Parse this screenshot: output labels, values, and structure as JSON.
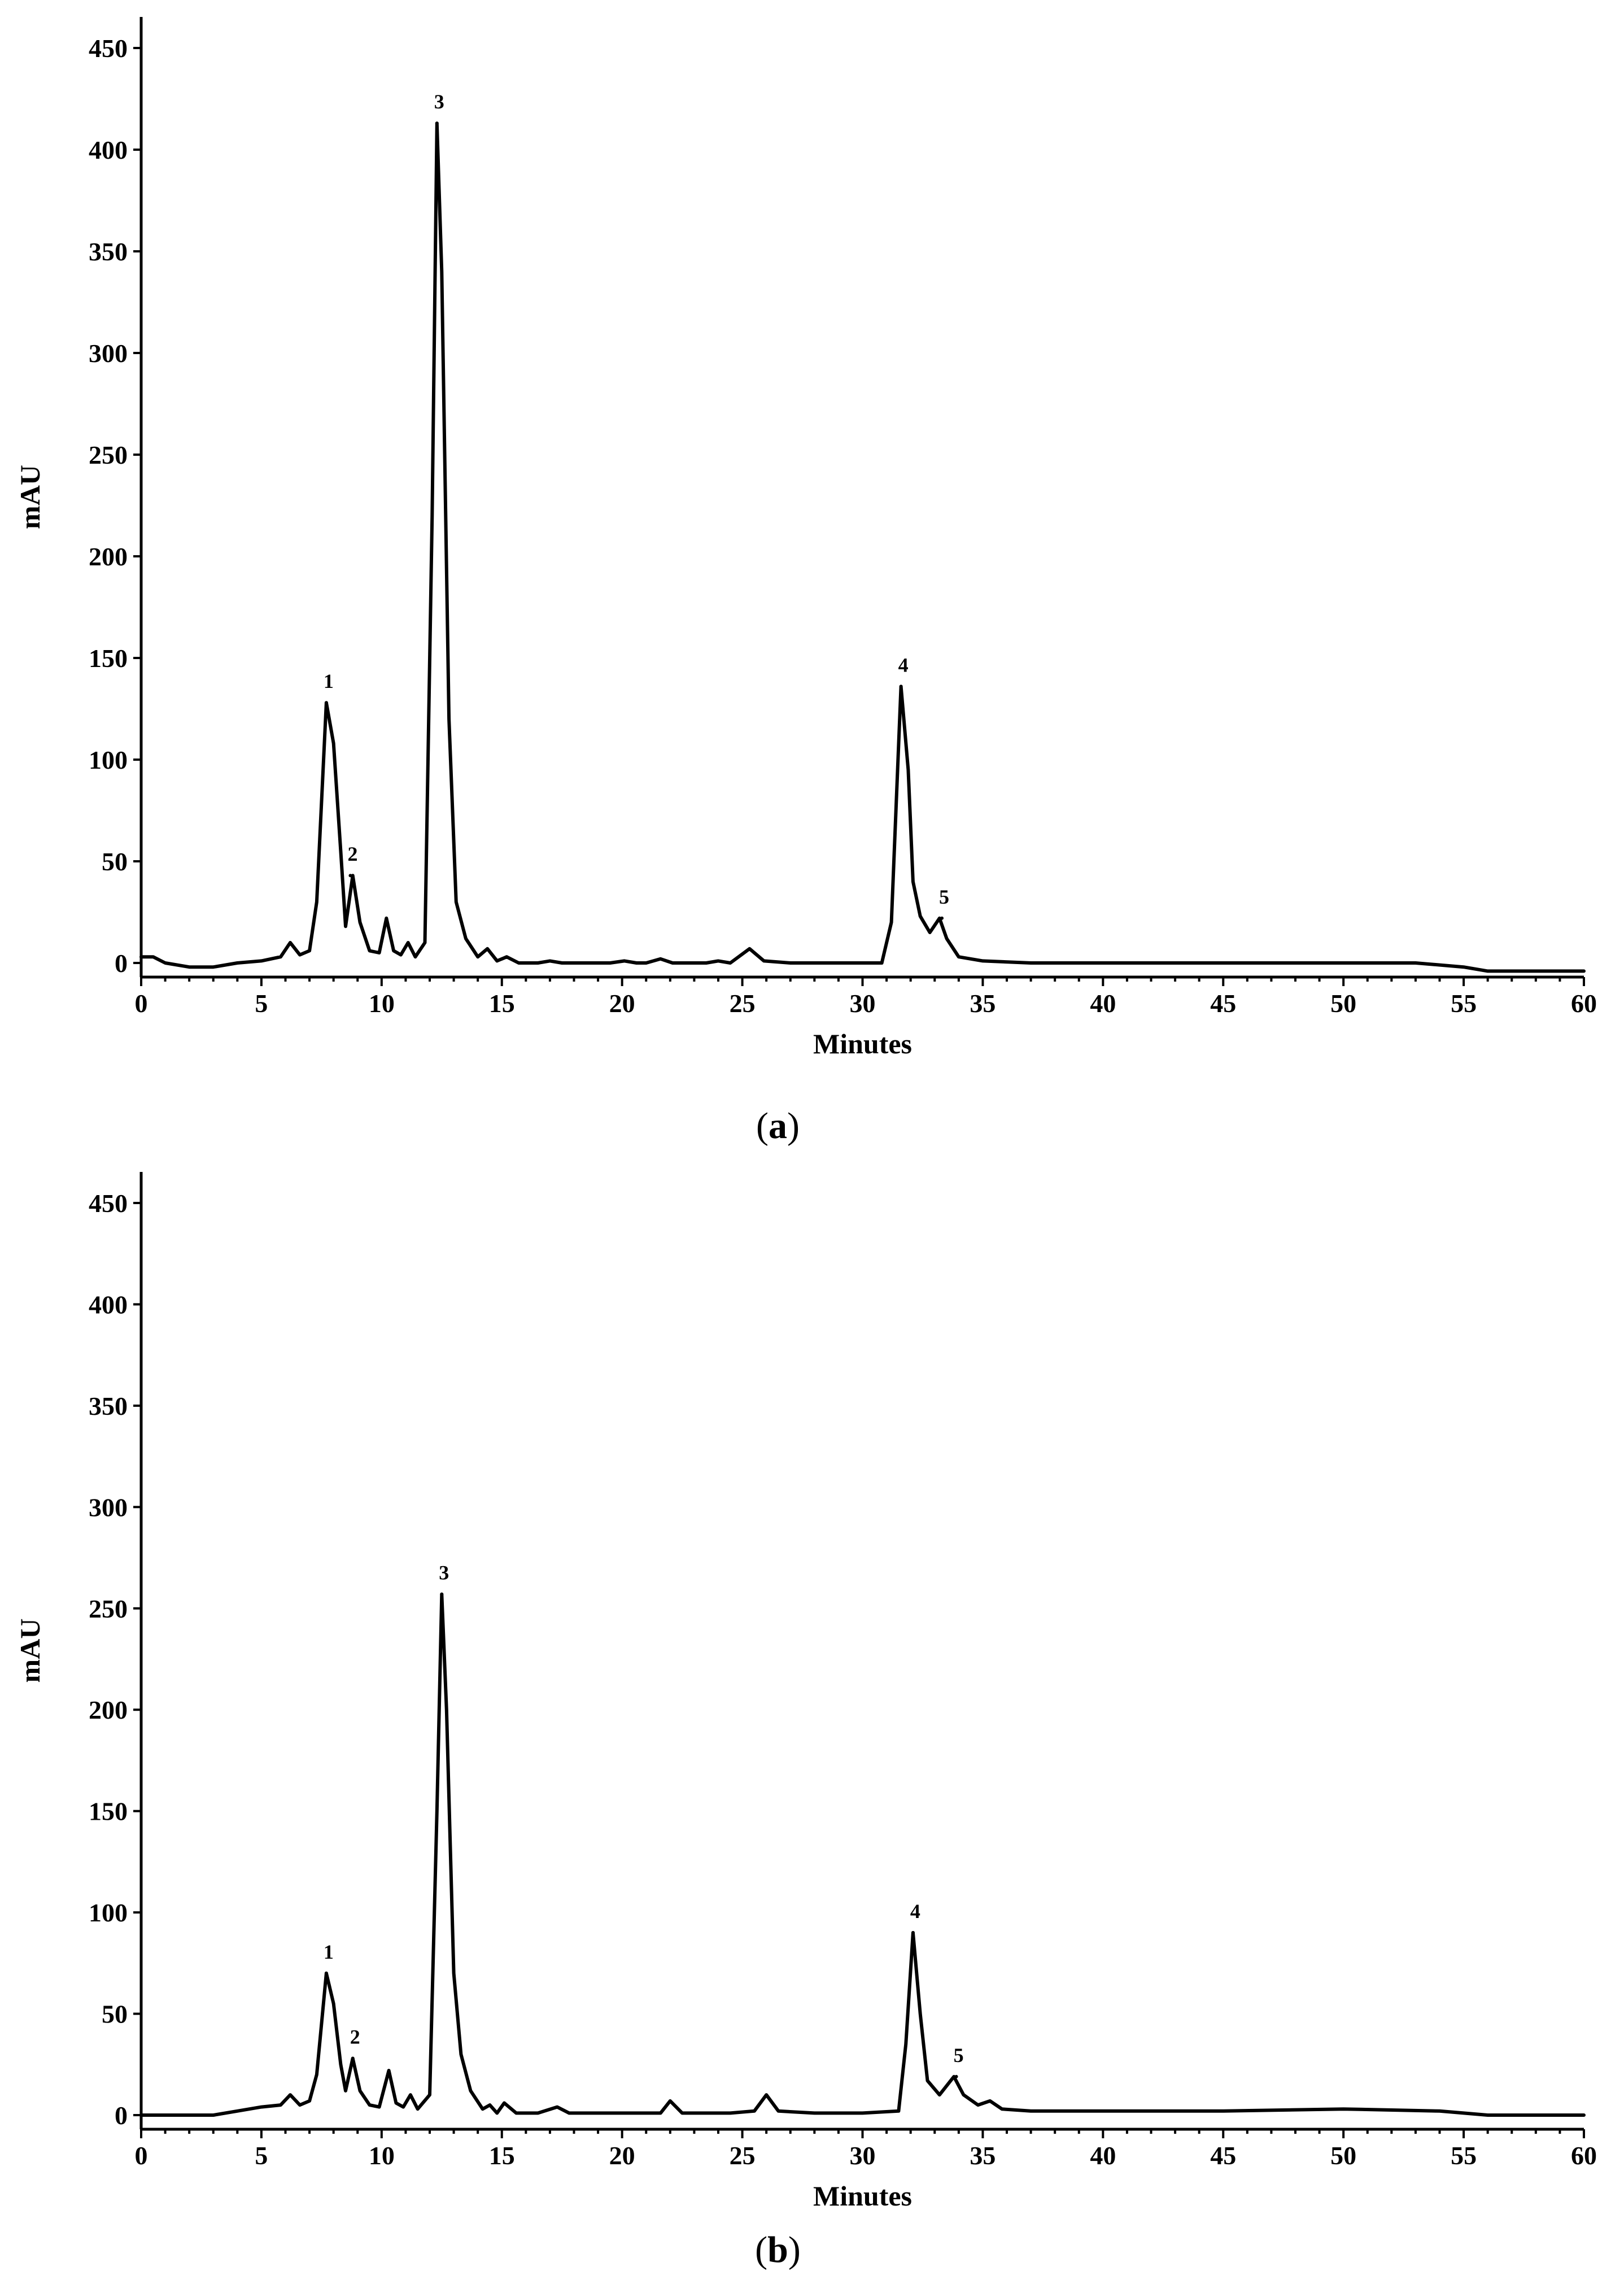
{
  "chart_data": [
    {
      "panel": "a",
      "type": "line",
      "title": "",
      "xlabel": "Minutes",
      "ylabel": "mAU",
      "xlim": [
        0,
        60
      ],
      "ylim": [
        0,
        450
      ],
      "xticks": [
        0,
        5,
        10,
        15,
        20,
        25,
        30,
        35,
        40,
        45,
        50,
        55,
        60
      ],
      "yticks": [
        0,
        50,
        100,
        150,
        200,
        250,
        300,
        350,
        400,
        450
      ],
      "grid": false,
      "baseline": [
        [
          0,
          3
        ],
        [
          0.5,
          3
        ],
        [
          1,
          0
        ],
        [
          2,
          -2
        ],
        [
          3,
          -2
        ],
        [
          4,
          0
        ],
        [
          5,
          1
        ],
        [
          5.8,
          3
        ],
        [
          6.2,
          10
        ],
        [
          6.6,
          4
        ],
        [
          7,
          6
        ],
        [
          7.3,
          30
        ],
        [
          7.7,
          128
        ],
        [
          8,
          108
        ],
        [
          8.3,
          55
        ],
        [
          8.5,
          18
        ],
        [
          8.8,
          43
        ],
        [
          9.1,
          20
        ],
        [
          9.5,
          6
        ],
        [
          9.9,
          5
        ],
        [
          10.2,
          22
        ],
        [
          10.5,
          6
        ],
        [
          10.8,
          4
        ],
        [
          11.1,
          10
        ],
        [
          11.4,
          3
        ],
        [
          11.8,
          10
        ],
        [
          12.1,
          220
        ],
        [
          12.3,
          413
        ],
        [
          12.5,
          340
        ],
        [
          12.8,
          120
        ],
        [
          13.1,
          30
        ],
        [
          13.5,
          12
        ],
        [
          14,
          3
        ],
        [
          14.4,
          7
        ],
        [
          14.8,
          1
        ],
        [
          15.2,
          3
        ],
        [
          15.7,
          0
        ],
        [
          16.5,
          0
        ],
        [
          17,
          1
        ],
        [
          17.5,
          0
        ],
        [
          19.5,
          0
        ],
        [
          20.1,
          1
        ],
        [
          20.6,
          0
        ],
        [
          21,
          0
        ],
        [
          21.6,
          2
        ],
        [
          22.1,
          0
        ],
        [
          23,
          0
        ],
        [
          23.5,
          0
        ],
        [
          24,
          1
        ],
        [
          24.5,
          0
        ],
        [
          25.3,
          7
        ],
        [
          25.9,
          1
        ],
        [
          27,
          0
        ],
        [
          29,
          0
        ],
        [
          30.8,
          0
        ],
        [
          31.2,
          20
        ],
        [
          31.6,
          136
        ],
        [
          31.9,
          95
        ],
        [
          32.1,
          40
        ],
        [
          32.4,
          23
        ],
        [
          32.8,
          15
        ],
        [
          33.2,
          22
        ],
        [
          33.5,
          12
        ],
        [
          34,
          3
        ],
        [
          35,
          1
        ],
        [
          37,
          0
        ],
        [
          40,
          0
        ],
        [
          45,
          0
        ],
        [
          50,
          0
        ],
        [
          53,
          0
        ],
        [
          55,
          -2
        ],
        [
          56,
          -4
        ],
        [
          60,
          -4
        ]
      ],
      "peaks": [
        {
          "label": "1",
          "x": 7.7,
          "y": 128
        },
        {
          "label": "2",
          "x": 8.7,
          "y": 43
        },
        {
          "label": "3",
          "x": 12.3,
          "y": 413
        },
        {
          "label": "4",
          "x": 31.6,
          "y": 136
        },
        {
          "label": "5",
          "x": 33.3,
          "y": 22
        }
      ],
      "caption": "a"
    },
    {
      "panel": "b",
      "type": "line",
      "title": "",
      "xlabel": "Minutes",
      "ylabel": "mAU",
      "xlim": [
        0,
        60
      ],
      "ylim": [
        0,
        450
      ],
      "xticks": [
        0,
        5,
        10,
        15,
        20,
        25,
        30,
        35,
        40,
        45,
        50,
        55,
        60
      ],
      "yticks": [
        0,
        50,
        100,
        150,
        200,
        250,
        300,
        350,
        400,
        450
      ],
      "grid": false,
      "baseline": [
        [
          0,
          0
        ],
        [
          1,
          0
        ],
        [
          2,
          0
        ],
        [
          3,
          0
        ],
        [
          4,
          2
        ],
        [
          5,
          4
        ],
        [
          5.8,
          5
        ],
        [
          6.2,
          10
        ],
        [
          6.6,
          5
        ],
        [
          7,
          7
        ],
        [
          7.3,
          20
        ],
        [
          7.7,
          70
        ],
        [
          8,
          55
        ],
        [
          8.3,
          25
        ],
        [
          8.5,
          12
        ],
        [
          8.8,
          28
        ],
        [
          9.1,
          12
        ],
        [
          9.5,
          5
        ],
        [
          9.9,
          4
        ],
        [
          10.3,
          22
        ],
        [
          10.6,
          6
        ],
        [
          10.9,
          4
        ],
        [
          11.2,
          10
        ],
        [
          11.5,
          3
        ],
        [
          12,
          10
        ],
        [
          12.3,
          150
        ],
        [
          12.5,
          257
        ],
        [
          12.7,
          200
        ],
        [
          13,
          70
        ],
        [
          13.3,
          30
        ],
        [
          13.7,
          12
        ],
        [
          14.2,
          3
        ],
        [
          14.5,
          5
        ],
        [
          14.8,
          1
        ],
        [
          15.1,
          6
        ],
        [
          15.6,
          1
        ],
        [
          16.5,
          1
        ],
        [
          17.3,
          4
        ],
        [
          17.8,
          1
        ],
        [
          20,
          1
        ],
        [
          21,
          1
        ],
        [
          21.6,
          1
        ],
        [
          22,
          7
        ],
        [
          22.5,
          1
        ],
        [
          23.5,
          1
        ],
        [
          24.5,
          1
        ],
        [
          25.5,
          2
        ],
        [
          26,
          10
        ],
        [
          26.5,
          2
        ],
        [
          28,
          1
        ],
        [
          30,
          1
        ],
        [
          31.5,
          2
        ],
        [
          31.8,
          35
        ],
        [
          32.1,
          90
        ],
        [
          32.4,
          50
        ],
        [
          32.7,
          17
        ],
        [
          33.2,
          10
        ],
        [
          33.8,
          19
        ],
        [
          34.2,
          10
        ],
        [
          34.8,
          5
        ],
        [
          35.3,
          7
        ],
        [
          35.8,
          3
        ],
        [
          37,
          2
        ],
        [
          40,
          2
        ],
        [
          45,
          2
        ],
        [
          50,
          3
        ],
        [
          54,
          2
        ],
        [
          55,
          1
        ],
        [
          56,
          0
        ],
        [
          60,
          0
        ]
      ],
      "peaks": [
        {
          "label": "1",
          "x": 7.7,
          "y": 70
        },
        {
          "label": "2",
          "x": 8.8,
          "y": 28
        },
        {
          "label": "3",
          "x": 12.5,
          "y": 257
        },
        {
          "label": "4",
          "x": 32.1,
          "y": 90
        },
        {
          "label": "5",
          "x": 33.9,
          "y": 19
        }
      ],
      "caption": "b"
    }
  ]
}
